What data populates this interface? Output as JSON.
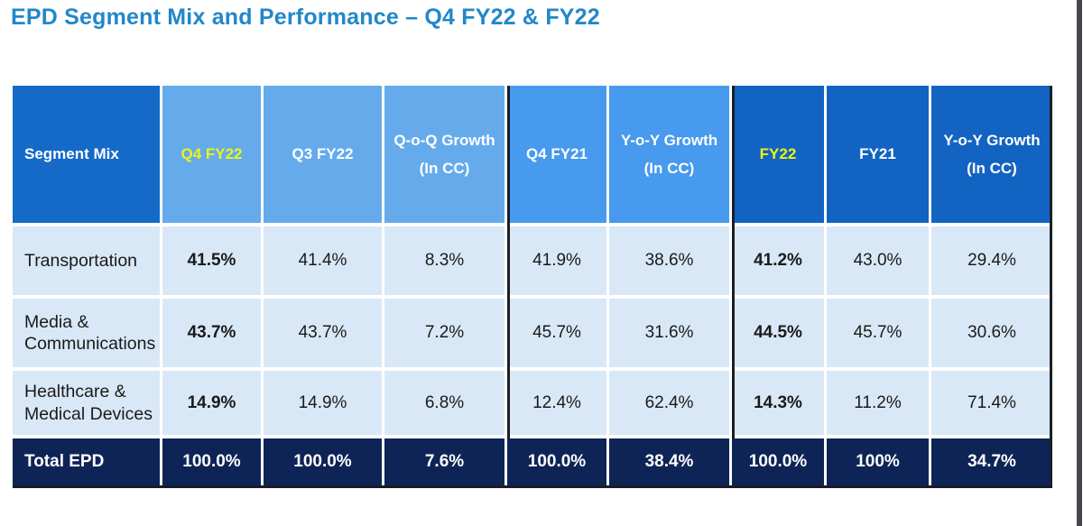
{
  "title": "EPD Segment Mix and Performance – Q4 FY22 & FY22",
  "table": {
    "columns": [
      {
        "label": "Segment Mix"
      },
      {
        "label": "Q4 FY22",
        "highlight": true
      },
      {
        "label": "Q3 FY22"
      },
      {
        "label": "Q-o-Q Growth",
        "sub": "(In CC)"
      },
      {
        "label": "Q4 FY21"
      },
      {
        "label": "Y-o-Y Growth",
        "sub": "(In CC)"
      },
      {
        "label": "FY22",
        "highlight": true
      },
      {
        "label": "FY21"
      },
      {
        "label": "Y-o-Y Growth",
        "sub": "(In CC)"
      }
    ],
    "rows": [
      {
        "label": "Transportation",
        "values": [
          "41.5%",
          "41.4%",
          "8.3%",
          "41.9%",
          "38.6%",
          "41.2%",
          "43.0%",
          "29.4%"
        ]
      },
      {
        "label": "Media & Communications",
        "values": [
          "43.7%",
          "43.7%",
          "7.2%",
          "45.7%",
          "31.6%",
          "44.5%",
          "45.7%",
          "30.6%"
        ]
      },
      {
        "label": "Healthcare & Medical Devices",
        "values": [
          "14.9%",
          "14.9%",
          "6.8%",
          "12.4%",
          "62.4%",
          "14.3%",
          "11.2%",
          "71.4%"
        ]
      }
    ],
    "total": {
      "label": "Total EPD",
      "values": [
        "100.0%",
        "100.0%",
        "7.6%",
        "100.0%",
        "38.4%",
        "100.0%",
        "100%",
        "34.7%"
      ]
    }
  },
  "chart_data": {
    "type": "table",
    "title": "EPD Segment Mix and Performance – Q4 FY22 & FY22",
    "columns": [
      "Segment Mix",
      "Q4 FY22",
      "Q3 FY22",
      "Q-o-Q Growth (In CC)",
      "Q4 FY21",
      "Y-o-Y Growth (In CC)",
      "FY22",
      "FY21",
      "Y-o-Y Growth (In CC)"
    ],
    "rows": [
      [
        "Transportation",
        "41.5%",
        "41.4%",
        "8.3%",
        "41.9%",
        "38.6%",
        "41.2%",
        "43.0%",
        "29.4%"
      ],
      [
        "Media & Communications",
        "43.7%",
        "43.7%",
        "7.2%",
        "45.7%",
        "31.6%",
        "44.5%",
        "45.7%",
        "30.6%"
      ],
      [
        "Healthcare & Medical Devices",
        "14.9%",
        "14.9%",
        "6.8%",
        "12.4%",
        "62.4%",
        "14.3%",
        "11.2%",
        "71.4%"
      ],
      [
        "Total EPD",
        "100.0%",
        "100.0%",
        "7.6%",
        "100.0%",
        "38.4%",
        "100.0%",
        "100%",
        "34.7%"
      ]
    ]
  },
  "colors": {
    "title_blue": "#2287C9",
    "header_dark_blue": "#156AC8",
    "header_light_blue": "#65ABEC",
    "header_mid_blue": "#479AED",
    "header_right_blue": "#1363C2",
    "highlight_yellow": "#EFF312",
    "body_light_blue": "#D9E8F6",
    "total_navy": "#0F2456",
    "dark_separator": "#1b1f26"
  }
}
